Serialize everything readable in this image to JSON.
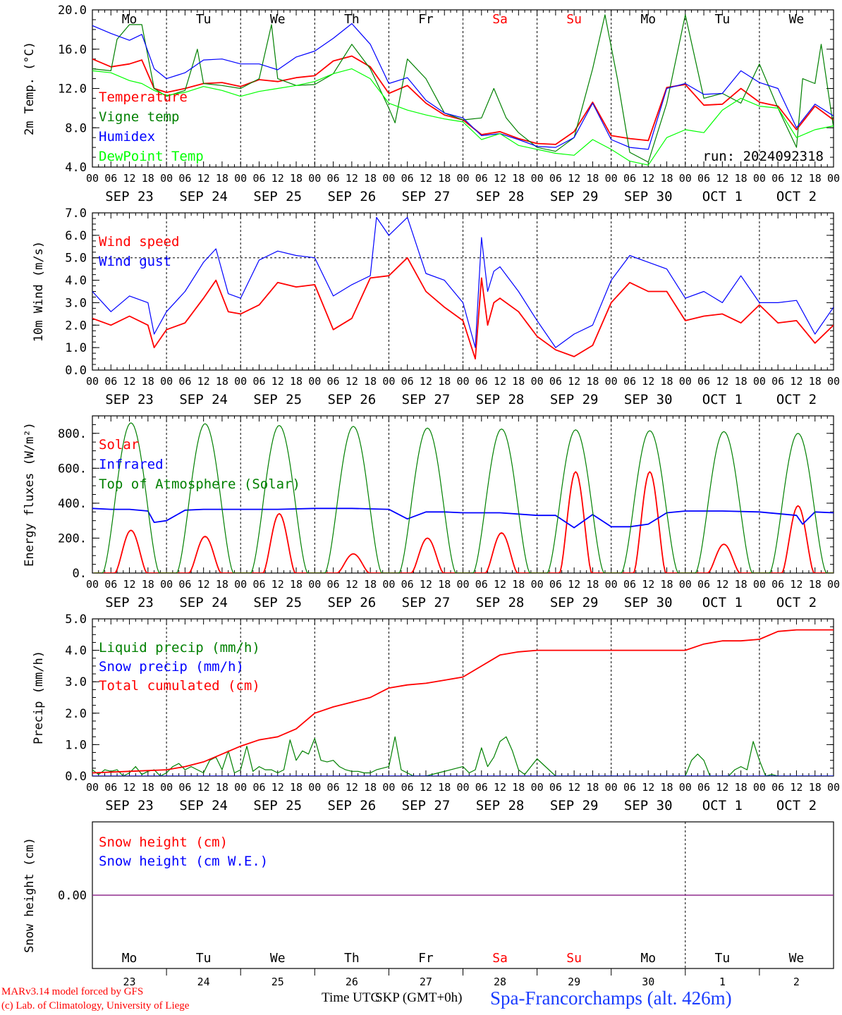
{
  "chart_data": [
    {
      "type": "line",
      "ylabel": "2m Temp. (°C)",
      "ylim": [
        4.0,
        20.0
      ],
      "yticks": [
        "4.0",
        "8.0",
        "12.0",
        "16.0",
        "20.0"
      ],
      "xlim": [
        0,
        240
      ],
      "run_label": "run: 2024092318",
      "series": [
        {
          "name": "Temperature",
          "color": "#ff0000",
          "x": [
            0,
            6,
            12,
            16,
            20,
            24,
            30,
            36,
            42,
            48,
            54,
            60,
            66,
            72,
            78,
            84,
            90,
            96,
            102,
            108,
            114,
            120,
            126,
            132,
            138,
            144,
            150,
            156,
            162,
            168,
            174,
            180,
            186,
            192,
            198,
            204,
            210,
            216,
            222,
            228,
            234,
            240
          ],
          "y": [
            15.0,
            14.2,
            14.5,
            14.9,
            12.0,
            11.6,
            12.0,
            12.5,
            12.6,
            12.2,
            12.9,
            12.7,
            13.1,
            13.3,
            14.8,
            15.3,
            14.2,
            11.5,
            12.3,
            10.5,
            9.3,
            8.8,
            7.3,
            7.6,
            6.9,
            6.4,
            6.3,
            7.6,
            10.6,
            7.2,
            6.9,
            6.7,
            12.1,
            12.4,
            10.3,
            10.4,
            12.0,
            10.6,
            10.2,
            7.8,
            10.2,
            8.8
          ]
        },
        {
          "name": "Vigne temp",
          "color": "#008000",
          "x": [
            0,
            6,
            8,
            12,
            16,
            20,
            24,
            30,
            34,
            36,
            42,
            48,
            54,
            58,
            60,
            66,
            72,
            78,
            84,
            90,
            96,
            98,
            102,
            108,
            114,
            120,
            126,
            130,
            134,
            138,
            144,
            150,
            156,
            162,
            166,
            170,
            174,
            180,
            186,
            192,
            198,
            204,
            210,
            216,
            222,
            228,
            230,
            234,
            236,
            240
          ],
          "y": [
            14.0,
            13.8,
            17.0,
            18.5,
            18.5,
            12.0,
            11.2,
            11.8,
            16.0,
            12.5,
            12.3,
            12.0,
            13.0,
            18.5,
            13.0,
            12.3,
            12.4,
            13.5,
            16.5,
            14.0,
            10.0,
            8.5,
            15.0,
            13.0,
            9.5,
            8.8,
            9.0,
            12.0,
            9.0,
            7.5,
            6.0,
            5.6,
            7.0,
            14.0,
            19.5,
            13.0,
            5.5,
            4.5,
            10.5,
            19.5,
            11.0,
            11.5,
            10.5,
            14.5,
            10.0,
            6.0,
            13.0,
            12.5,
            16.5,
            8.0
          ]
        },
        {
          "name": "Humidex",
          "color": "#0000ff",
          "x": [
            0,
            6,
            12,
            16,
            20,
            24,
            30,
            36,
            42,
            48,
            54,
            60,
            66,
            72,
            78,
            84,
            90,
            96,
            102,
            108,
            114,
            120,
            126,
            132,
            138,
            144,
            150,
            156,
            162,
            168,
            174,
            180,
            186,
            192,
            198,
            204,
            210,
            216,
            222,
            228,
            234,
            240
          ],
          "y": [
            18.4,
            17.6,
            16.9,
            17.5,
            14.0,
            13.0,
            13.6,
            14.9,
            15.0,
            14.5,
            14.5,
            13.9,
            15.2,
            15.8,
            17.1,
            18.6,
            16.5,
            12.5,
            13.1,
            10.8,
            9.5,
            9.0,
            7.2,
            7.4,
            6.8,
            6.1,
            6.0,
            7.0,
            10.5,
            6.8,
            6.0,
            5.8,
            12.0,
            12.5,
            11.4,
            11.5,
            13.8,
            12.6,
            12.0,
            8.0,
            10.4,
            9.2
          ]
        },
        {
          "name": "DewPoint Temp",
          "color": "#00ff00",
          "x": [
            0,
            6,
            12,
            16,
            20,
            24,
            30,
            36,
            42,
            48,
            54,
            60,
            66,
            72,
            78,
            84,
            90,
            96,
            102,
            108,
            114,
            120,
            126,
            132,
            138,
            144,
            150,
            156,
            162,
            168,
            174,
            180,
            186,
            192,
            198,
            204,
            210,
            216,
            222,
            228,
            234,
            240
          ],
          "y": [
            13.8,
            13.6,
            12.8,
            12.5,
            11.8,
            11.3,
            11.6,
            12.2,
            11.8,
            11.2,
            11.7,
            12.0,
            12.3,
            12.7,
            13.5,
            14.0,
            13.0,
            10.5,
            9.8,
            9.3,
            8.9,
            8.6,
            6.8,
            7.4,
            6.2,
            5.8,
            5.4,
            5.2,
            6.8,
            5.8,
            4.6,
            4.2,
            7.0,
            7.8,
            7.5,
            9.8,
            11.0,
            10.2,
            10.0,
            7.0,
            7.8,
            8.2
          ]
        }
      ]
    },
    {
      "type": "line",
      "ylabel": "10m Wind (m/s)",
      "ylim": [
        0.0,
        7.0
      ],
      "yticks": [
        "0.0",
        "1.0",
        "2.0",
        "3.0",
        "4.0",
        "5.0",
        "6.0",
        "7.0"
      ],
      "xlim": [
        0,
        240
      ],
      "series": [
        {
          "name": "Wind speed",
          "color": "#ff0000",
          "x": [
            0,
            6,
            12,
            18,
            20,
            24,
            30,
            36,
            40,
            44,
            48,
            54,
            60,
            66,
            72,
            78,
            84,
            90,
            96,
            102,
            108,
            114,
            120,
            124,
            126,
            128,
            130,
            132,
            138,
            144,
            150,
            156,
            162,
            168,
            174,
            180,
            186,
            192,
            198,
            204,
            210,
            216,
            222,
            228,
            234,
            240
          ],
          "y": [
            2.3,
            2.0,
            2.4,
            2.0,
            1.0,
            1.8,
            2.1,
            3.2,
            4.0,
            2.6,
            2.5,
            2.9,
            3.9,
            3.7,
            3.8,
            1.8,
            2.3,
            4.1,
            4.2,
            5.0,
            3.5,
            2.8,
            2.2,
            0.5,
            4.1,
            2.0,
            3.0,
            3.2,
            2.6,
            1.5,
            0.9,
            0.6,
            1.1,
            3.0,
            3.9,
            3.5,
            3.5,
            2.2,
            2.4,
            2.5,
            2.1,
            2.9,
            2.1,
            2.2,
            1.2,
            2.0
          ]
        },
        {
          "name": "Wind gust",
          "color": "#0000ff",
          "x": [
            0,
            6,
            12,
            18,
            20,
            24,
            30,
            36,
            40,
            44,
            48,
            54,
            60,
            66,
            72,
            78,
            84,
            90,
            92,
            96,
            102,
            108,
            114,
            120,
            124,
            126,
            128,
            130,
            132,
            138,
            144,
            150,
            156,
            162,
            168,
            174,
            180,
            186,
            192,
            198,
            204,
            210,
            216,
            222,
            228,
            234,
            240
          ],
          "y": [
            3.5,
            2.6,
            3.3,
            3.0,
            1.6,
            2.6,
            3.5,
            4.8,
            5.4,
            3.4,
            3.2,
            4.9,
            5.3,
            5.1,
            5.0,
            3.3,
            3.8,
            4.2,
            6.8,
            6.0,
            6.8,
            4.3,
            4.0,
            3.0,
            1.0,
            5.9,
            3.5,
            4.4,
            4.6,
            3.5,
            2.2,
            1.0,
            1.6,
            2.0,
            4.0,
            5.1,
            4.8,
            4.5,
            3.2,
            3.5,
            3.0,
            4.2,
            3.0,
            3.0,
            3.1,
            1.6,
            2.8
          ]
        }
      ]
    },
    {
      "type": "line",
      "ylabel": "Energy fluxes (W/m²)",
      "ylim": [
        0,
        900
      ],
      "yticks": [
        "0.",
        "200.",
        "400.",
        "600.",
        "800."
      ],
      "xlim": [
        0,
        240
      ],
      "series": [
        {
          "name": "Solar",
          "color": "#ff0000",
          "peaks": [
            245,
            210,
            340,
            110,
            200,
            230,
            580,
            580,
            165,
            385
          ]
        },
        {
          "name": "Infrared",
          "color": "#0000ff",
          "x": [
            0,
            6,
            12,
            18,
            20,
            24,
            30,
            36,
            48,
            60,
            72,
            84,
            96,
            102,
            108,
            114,
            120,
            132,
            144,
            150,
            156,
            162,
            168,
            174,
            180,
            186,
            192,
            204,
            216,
            228,
            230,
            234,
            240
          ],
          "y": [
            370,
            365,
            365,
            355,
            290,
            300,
            360,
            365,
            365,
            365,
            370,
            370,
            365,
            310,
            350,
            350,
            345,
            345,
            330,
            330,
            260,
            335,
            265,
            265,
            280,
            345,
            355,
            355,
            350,
            330,
            280,
            350,
            345
          ]
        },
        {
          "name": "Top of Atmosphere (Solar)",
          "color": "#008000",
          "peaks": [
            860,
            855,
            845,
            840,
            830,
            825,
            820,
            815,
            810,
            800
          ]
        }
      ]
    },
    {
      "type": "line",
      "ylabel": "Precip (mm/h)",
      "ylim": [
        0.0,
        5.0
      ],
      "yticks": [
        "0.0",
        "1.0",
        "2.0",
        "3.0",
        "4.0",
        "5.0"
      ],
      "xlim": [
        0,
        240
      ],
      "series": [
        {
          "name": "Liquid precip (mm/h)",
          "color": "#008000",
          "x": [
            0,
            2,
            4,
            6,
            8,
            10,
            12,
            14,
            16,
            18,
            20,
            22,
            24,
            26,
            28,
            30,
            32,
            34,
            36,
            38,
            40,
            42,
            44,
            46,
            48,
            50,
            52,
            54,
            56,
            58,
            60,
            62,
            64,
            66,
            68,
            70,
            72,
            74,
            76,
            78,
            80,
            82,
            84,
            86,
            88,
            90,
            92,
            94,
            96,
            98,
            100,
            104,
            108,
            112,
            116,
            120,
            122,
            124,
            126,
            128,
            130,
            132,
            134,
            136,
            138,
            140,
            144,
            150,
            156,
            162,
            168,
            174,
            180,
            186,
            190,
            192,
            194,
            196,
            198,
            200,
            202,
            204,
            206,
            208,
            210,
            212,
            214,
            216,
            218,
            220,
            222,
            230,
            240
          ],
          "y": [
            0.2,
            0.05,
            0.2,
            0.15,
            0.2,
            0.0,
            0.1,
            0.3,
            0.05,
            0.15,
            0.2,
            0.0,
            0.1,
            0.3,
            0.4,
            0.2,
            0.3,
            0.2,
            0.1,
            0.5,
            0.6,
            0.2,
            0.8,
            0.1,
            0.2,
            0.95,
            0.15,
            0.3,
            0.2,
            0.2,
            0.1,
            0.2,
            1.15,
            0.5,
            0.8,
            0.7,
            1.2,
            0.5,
            0.45,
            0.5,
            0.3,
            0.2,
            0.15,
            0.15,
            0.1,
            0.1,
            0.2,
            0.25,
            0.3,
            1.25,
            0.2,
            0.0,
            0.0,
            0.1,
            0.2,
            0.3,
            0.1,
            0.2,
            0.9,
            0.3,
            0.6,
            1.1,
            1.25,
            0.8,
            0.2,
            0.05,
            0.55,
            0.0,
            0.0,
            0.0,
            0.0,
            0.0,
            0.0,
            0.0,
            0.0,
            0.0,
            0.5,
            0.7,
            0.5,
            0.0,
            0.0,
            0.0,
            0.0,
            0.2,
            0.3,
            0.2,
            1.1,
            0.5,
            0.0,
            0.05,
            0.0,
            0.0,
            0.0
          ]
        },
        {
          "name": "Snow precip (mm/h)",
          "color": "#0000ff",
          "x": [
            0,
            240
          ],
          "y": [
            0.0,
            0.0
          ]
        },
        {
          "name": "Total cumulated (cm)",
          "color": "#ff0000",
          "x": [
            0,
            12,
            24,
            30,
            36,
            42,
            48,
            54,
            60,
            66,
            72,
            78,
            84,
            90,
            96,
            102,
            108,
            114,
            120,
            126,
            132,
            138,
            144,
            156,
            168,
            180,
            192,
            198,
            204,
            210,
            216,
            222,
            228,
            240
          ],
          "y": [
            0.1,
            0.15,
            0.2,
            0.3,
            0.45,
            0.7,
            0.95,
            1.15,
            1.25,
            1.5,
            2.0,
            2.2,
            2.35,
            2.5,
            2.8,
            2.9,
            2.95,
            3.05,
            3.15,
            3.5,
            3.85,
            3.95,
            4.0,
            4.0,
            4.0,
            4.0,
            4.0,
            4.2,
            4.3,
            4.3,
            4.35,
            4.6,
            4.65,
            4.65
          ]
        }
      ]
    },
    {
      "type": "line",
      "ylabel": "Snow height (cm)",
      "yticks": [
        "0.00"
      ],
      "xlim": [
        0,
        240
      ],
      "series": [
        {
          "name": "Snow height (cm)",
          "color": "#ff0000",
          "x": [
            0,
            240
          ],
          "y": [
            0.0,
            0.0
          ]
        },
        {
          "name": "Snow height (cm W.E.)",
          "color": "#0000ff",
          "x": [
            0,
            240
          ],
          "y": [
            0.0,
            0.0
          ]
        }
      ]
    }
  ],
  "x_axis": {
    "hour_ticks": [
      "00",
      "06",
      "12",
      "18"
    ],
    "last_hour": "00",
    "dates": [
      "SEP 23",
      "SEP 24",
      "SEP 25",
      "SEP 26",
      "SEP 27",
      "SEP 28",
      "SEP 29",
      "SEP 30",
      "OCT  1",
      "OCT  2"
    ],
    "weekdays": [
      "Mo",
      "Tu",
      "We",
      "Th",
      "Fr",
      "Sa",
      "Su",
      "Mo",
      "Tu",
      "We"
    ],
    "day_numbers": [
      "23",
      "24",
      "25",
      "26",
      "27",
      "28",
      "29",
      "30",
      "1",
      "2"
    ],
    "weekday_colors": [
      "#000000",
      "#000000",
      "#000000",
      "#000000",
      "#000000",
      "#ff0000",
      "#ff0000",
      "#000000",
      "#000000",
      "#000000"
    ]
  },
  "footer": {
    "credit_line1": "MARv3.14 model forced by GFS",
    "credit_line2": "(c) Lab. of Climatology, University of Liege",
    "time_label_a": "Time UTC",
    "time_label_b": "SKP (GMT+0h)",
    "station": "Spa-Francorchamps (alt. 426m)"
  }
}
